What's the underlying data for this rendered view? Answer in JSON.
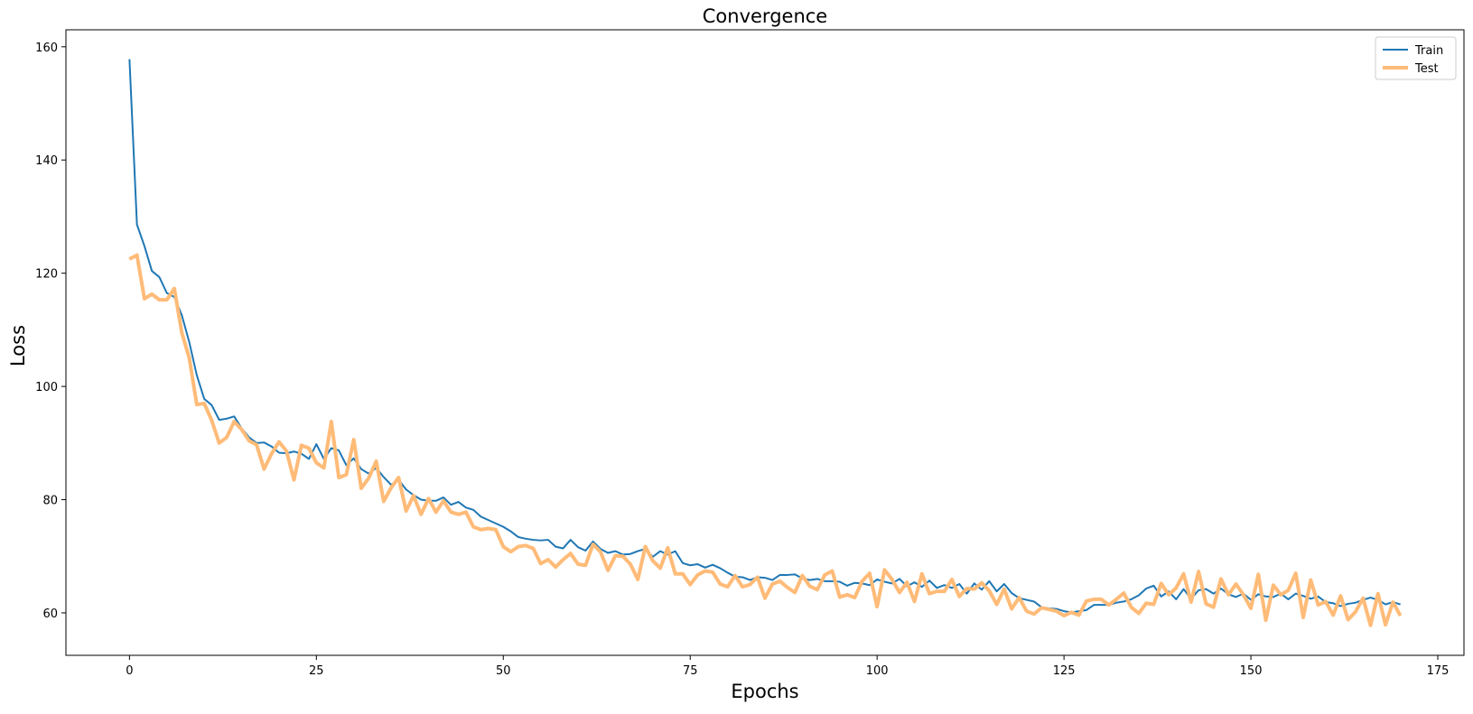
{
  "chart_data": {
    "type": "line",
    "title": "Convergence",
    "xlabel": "Epochs",
    "ylabel": "Loss",
    "xlim": [
      -8.5,
      178.5
    ],
    "ylim": [
      52.5,
      163
    ],
    "xticks": [
      0,
      25,
      50,
      75,
      100,
      125,
      150,
      175
    ],
    "yticks": [
      60,
      80,
      100,
      120,
      140,
      160
    ],
    "grid": false,
    "legend_position": "top-right",
    "series": [
      {
        "name": "Train",
        "color": "#1f77b4",
        "values": [
          157.8,
          128.6,
          124.8,
          120.4,
          119.3,
          116.5,
          115.8,
          112.6,
          107.8,
          102.0,
          97.8,
          96.7,
          94.1,
          94.3,
          94.7,
          92.6,
          91.0,
          90.0,
          90.1,
          89.4,
          88.3,
          88.2,
          88.5,
          88.1,
          87.2,
          89.8,
          87.2,
          89.1,
          88.7,
          86.1,
          87.3,
          85.4,
          84.6,
          85.6,
          84.0,
          82.6,
          83.5,
          81.8,
          80.8,
          80.0,
          79.8,
          79.8,
          80.4,
          79.1,
          79.6,
          78.6,
          78.2,
          77.0,
          76.4,
          75.8,
          75.2,
          74.4,
          73.4,
          73.1,
          72.9,
          72.8,
          72.9,
          71.7,
          71.4,
          72.9,
          71.6,
          71.0,
          72.6,
          71.3,
          70.6,
          70.9,
          70.3,
          70.4,
          70.9,
          71.3,
          69.9,
          70.9,
          70.3,
          70.9,
          68.8,
          68.4,
          68.6,
          68.0,
          68.5,
          67.9,
          67.1,
          66.4,
          66.3,
          65.8,
          66.3,
          66.2,
          65.8,
          66.7,
          66.7,
          66.8,
          66.1,
          65.8,
          66.0,
          65.6,
          65.6,
          65.5,
          64.8,
          65.3,
          65.2,
          64.9,
          65.9,
          65.5,
          65.2,
          66.0,
          64.7,
          65.4,
          64.6,
          65.7,
          64.4,
          64.9,
          64.4,
          65.1,
          63.4,
          65.2,
          64.1,
          65.6,
          63.8,
          65.1,
          63.5,
          62.6,
          62.3,
          62.0,
          61.0,
          60.8,
          60.7,
          60.3,
          60.1,
          60.3,
          60.5,
          61.4,
          61.4,
          61.4,
          61.8,
          62.0,
          62.4,
          63.1,
          64.3,
          64.8,
          62.9,
          63.8,
          62.4,
          64.2,
          62.5,
          64.0,
          64.2,
          63.4,
          64.3,
          63.3,
          62.8,
          63.4,
          62.3,
          63.3,
          62.9,
          62.8,
          63.4,
          62.4,
          63.4,
          63.0,
          62.5,
          62.9,
          61.9,
          61.7,
          61.2,
          61.6,
          61.8,
          62.3,
          62.7,
          62.3,
          61.5,
          61.9,
          61.5
        ]
      },
      {
        "name": "Test",
        "color": "#ffbb78",
        "values": [
          122.5,
          123.2,
          115.5,
          116.3,
          115.3,
          115.3,
          117.3,
          109.5,
          105.0,
          96.8,
          97.0,
          94.0,
          90.0,
          91.0,
          93.8,
          92.4,
          90.4,
          89.7,
          85.4,
          88.1,
          90.2,
          88.6,
          83.5,
          89.6,
          89.1,
          86.5,
          85.6,
          93.8,
          83.9,
          84.4,
          90.6,
          82.0,
          83.8,
          86.8,
          79.7,
          82.1,
          83.9,
          78.0,
          80.7,
          77.4,
          80.2,
          77.8,
          79.8,
          77.8,
          77.4,
          77.8,
          75.2,
          74.7,
          74.9,
          74.7,
          71.7,
          70.8,
          71.7,
          71.9,
          71.4,
          68.7,
          69.4,
          68.1,
          69.4,
          70.5,
          68.6,
          68.4,
          72.1,
          70.8,
          67.5,
          70.1,
          70.0,
          68.6,
          65.9,
          71.7,
          69.2,
          67.9,
          71.5,
          66.9,
          66.9,
          65.0,
          66.7,
          67.4,
          67.2,
          65.1,
          64.6,
          66.6,
          64.6,
          65.0,
          66.3,
          62.6,
          65.1,
          65.6,
          64.5,
          63.6,
          66.6,
          64.7,
          64.1,
          66.7,
          67.4,
          62.8,
          63.2,
          62.7,
          65.6,
          67.0,
          61.1,
          67.6,
          65.9,
          63.6,
          65.4,
          62.0,
          66.9,
          63.4,
          63.8,
          63.8,
          65.9,
          62.9,
          64.3,
          64.2,
          65.3,
          63.9,
          61.5,
          64.2,
          60.7,
          62.7,
          60.3,
          59.8,
          60.9,
          60.6,
          60.3,
          59.5,
          60.1,
          59.6,
          62.1,
          62.4,
          62.4,
          61.4,
          62.4,
          63.5,
          61.0,
          59.9,
          61.7,
          61.5,
          65.2,
          63.2,
          64.4,
          66.9,
          61.9,
          67.3,
          61.6,
          61.0,
          66.0,
          63.2,
          65.1,
          63.2,
          60.8,
          66.8,
          58.7,
          64.9,
          63.2,
          64.0,
          67.0,
          59.2,
          65.8,
          61.4,
          62.0,
          59.6,
          63.0,
          58.8,
          60.2,
          62.6,
          57.8,
          63.4,
          57.9,
          61.9,
          59.5
        ]
      }
    ]
  }
}
